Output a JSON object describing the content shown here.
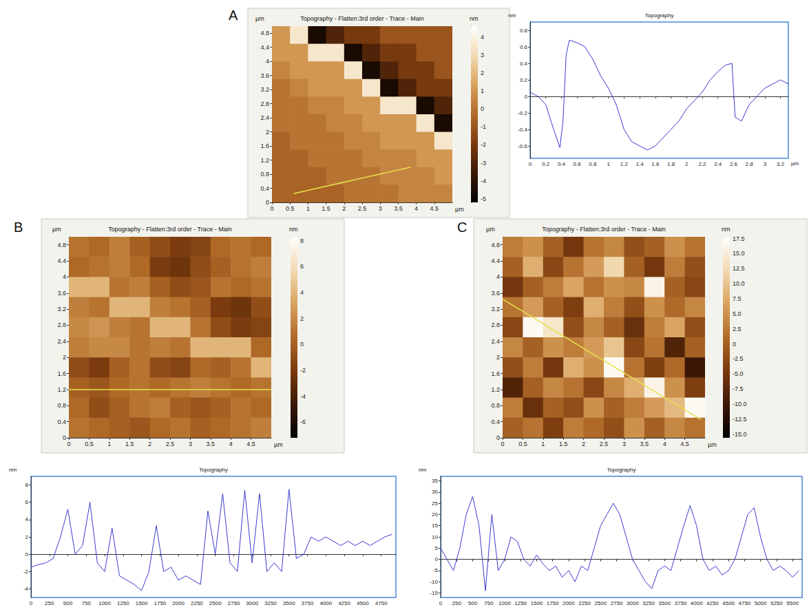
{
  "chart_data": [
    {
      "type": "heatmap",
      "panel": "A",
      "title": "Topography - Flatten:3rd order - Trace - Main",
      "x_unit": "µm",
      "y_unit": "µm",
      "grid": false,
      "xlim": [
        0,
        5
      ],
      "ylim": [
        0,
        5
      ],
      "xticks": [
        0,
        0.5,
        1,
        1.5,
        2,
        2.5,
        3,
        3.5,
        4,
        4.5
      ],
      "yticks": [
        0,
        0.4,
        0.8,
        1.2,
        1.6,
        2,
        2.4,
        2.8,
        3.2,
        3.6,
        4,
        4.4,
        4.8
      ],
      "z": [
        [
          1,
          3.5,
          -4.5,
          -3,
          -2,
          -2,
          -1,
          -1,
          -1,
          -1
        ],
        [
          1,
          1,
          3.5,
          3.5,
          -4.5,
          -3,
          -2,
          -2,
          -1,
          -1
        ],
        [
          0.5,
          1,
          1,
          1,
          3.5,
          -4.5,
          -3,
          -2,
          -2,
          -1
        ],
        [
          0,
          0.5,
          1,
          1,
          1,
          3.5,
          -4.5,
          -3,
          -2,
          -2
        ],
        [
          0,
          0,
          0.5,
          0.5,
          1,
          1,
          3.5,
          3.5,
          -4.5,
          -3
        ],
        [
          0,
          0,
          0,
          0.5,
          0.5,
          1,
          1,
          1,
          3.5,
          -4.5
        ],
        [
          -0.5,
          0,
          0,
          0,
          0.5,
          0.5,
          1,
          1,
          1,
          3.5
        ],
        [
          -0.5,
          -0.5,
          0,
          0,
          0,
          0.5,
          0.5,
          0.5,
          1,
          1
        ],
        [
          -0.5,
          -0.5,
          -0.5,
          0,
          0,
          0,
          0.5,
          0.5,
          0.5,
          1
        ],
        [
          -0.5,
          -0.5,
          -0.5,
          -0.5,
          0,
          0,
          0,
          0.5,
          0.5,
          0.5
        ]
      ],
      "colorbar": {
        "range": [
          -5.2,
          4.6
        ],
        "ticks": [
          -5,
          -4,
          -3,
          -2,
          -1,
          0,
          1,
          2,
          3,
          4
        ],
        "unit": "nm"
      },
      "profile_line": {
        "x": [
          0.6,
          3.85
        ],
        "y": [
          0.25,
          1.0
        ],
        "color": "#e6e04a"
      }
    },
    {
      "type": "line",
      "title": "Topography",
      "y_unit": "nm",
      "x_unit": "µm",
      "grid": false,
      "color": "#3a3ad0",
      "xlim": [
        0,
        3.3
      ],
      "ylim": [
        -0.75,
        0.9
      ],
      "xticks": [
        0,
        0.2,
        0.4,
        0.6,
        0.8,
        1,
        1.2,
        1.4,
        1.6,
        1.8,
        2,
        2.2,
        2.4,
        2.6,
        2.8,
        3,
        3.2
      ],
      "yticks": [
        -0.6,
        -0.4,
        -0.2,
        0,
        0.2,
        0.4,
        0.6,
        0.8
      ],
      "x": [
        0,
        0.1,
        0.2,
        0.3,
        0.38,
        0.42,
        0.46,
        0.5,
        0.6,
        0.7,
        0.8,
        0.9,
        1.0,
        1.1,
        1.2,
        1.3,
        1.4,
        1.5,
        1.6,
        1.7,
        1.8,
        1.9,
        2.0,
        2.1,
        2.2,
        2.3,
        2.4,
        2.5,
        2.58,
        2.62,
        2.7,
        2.8,
        2.9,
        3.0,
        3.1,
        3.2,
        3.3
      ],
      "values": [
        0.05,
        0.0,
        -0.1,
        -0.4,
        -0.62,
        -0.3,
        0.5,
        0.68,
        0.65,
        0.6,
        0.45,
        0.25,
        0.1,
        -0.1,
        -0.4,
        -0.55,
        -0.6,
        -0.65,
        -0.6,
        -0.5,
        -0.4,
        -0.3,
        -0.15,
        -0.05,
        0.05,
        0.2,
        0.3,
        0.38,
        0.4,
        -0.25,
        -0.3,
        -0.1,
        0.0,
        0.1,
        0.15,
        0.2,
        0.15
      ]
    },
    {
      "type": "heatmap",
      "panel": "B",
      "title": "Topography - Flatten:3rd order - Trace - Main",
      "x_unit": "µm",
      "y_unit": "µm",
      "grid": false,
      "xlim": [
        0,
        5
      ],
      "ylim": [
        0,
        5
      ],
      "xticks": [
        0,
        0.5,
        1,
        1.5,
        2,
        2.5,
        3,
        3.5,
        4,
        4.5
      ],
      "yticks": [
        0,
        0.4,
        0.8,
        1.2,
        1.6,
        2,
        2.4,
        2.8,
        3.2,
        3.6,
        4,
        4.4,
        4.8
      ],
      "z": [
        [
          1,
          0.5,
          1.5,
          0,
          -1,
          -2,
          -1.5,
          0.5,
          1,
          0.5
        ],
        [
          0.5,
          1,
          1.5,
          0.5,
          -2,
          -2.5,
          -1,
          0,
          1,
          1.5
        ],
        [
          4,
          4,
          1,
          1.5,
          0,
          -1,
          -0.5,
          1,
          0.5,
          1
        ],
        [
          1.5,
          1,
          4,
          4,
          1.5,
          1,
          0,
          -2,
          -2.5,
          -1
        ],
        [
          2,
          2.5,
          1.5,
          1,
          4,
          4,
          1,
          -1,
          -2,
          -1.5
        ],
        [
          1.5,
          2,
          2,
          1,
          1.5,
          1,
          4,
          4,
          4,
          0.5
        ],
        [
          -1,
          -2,
          0,
          1,
          -1,
          -1.5,
          0.5,
          0,
          1,
          4
        ],
        [
          0,
          -0.5,
          0.5,
          1,
          0.5,
          1,
          1.5,
          1,
          0.5,
          1
        ],
        [
          0.5,
          -1,
          0,
          1,
          1.5,
          0,
          -0.5,
          0,
          1,
          0.5
        ],
        [
          1,
          0.5,
          0,
          -0.5,
          0.5,
          1,
          0,
          0.5,
          1,
          1.5
        ]
      ],
      "colorbar": {
        "range": [
          -7.2,
          8.3
        ],
        "ticks": [
          -6,
          -4,
          -2,
          0,
          2,
          4,
          6,
          8
        ],
        "unit": "nm"
      },
      "profile_line": {
        "x": [
          0,
          5
        ],
        "y": [
          1.2,
          1.2
        ],
        "color": "#e6e04a"
      }
    },
    {
      "type": "line",
      "title": "Topography",
      "y_unit": "nm",
      "grid": false,
      "color": "#3a3ad0",
      "xlim": [
        0,
        4950
      ],
      "ylim": [
        -5,
        9
      ],
      "xticks": [
        0,
        250,
        500,
        750,
        1000,
        1250,
        1500,
        1750,
        2000,
        2250,
        2500,
        2750,
        3000,
        3250,
        3500,
        3750,
        4000,
        4250,
        4500,
        4750
      ],
      "yticks": [
        -4,
        -2,
        0,
        2,
        4,
        6,
        8
      ],
      "x": [
        0,
        100,
        200,
        300,
        400,
        500,
        600,
        700,
        800,
        900,
        1000,
        1100,
        1200,
        1300,
        1400,
        1500,
        1600,
        1700,
        1800,
        1900,
        2000,
        2100,
        2200,
        2300,
        2400,
        2500,
        2600,
        2700,
        2800,
        2900,
        3000,
        3100,
        3200,
        3300,
        3400,
        3500,
        3600,
        3700,
        3800,
        3900,
        4000,
        4100,
        4200,
        4300,
        4400,
        4500,
        4600,
        4700,
        4800,
        4900
      ],
      "values": [
        -1.5,
        -1.2,
        -1,
        -0.5,
        2,
        5.2,
        0,
        1,
        6,
        -1,
        -2,
        3,
        -2.5,
        -3,
        -3.5,
        -4.2,
        -2,
        3.3,
        -2,
        -1.5,
        -3,
        -2.5,
        -3,
        -3.5,
        5,
        0,
        7,
        -1,
        -2,
        7.4,
        -1,
        7,
        -2,
        -1,
        -2,
        7.5,
        -0.5,
        0,
        2,
        1.5,
        2,
        1.5,
        1,
        1.5,
        1,
        1.5,
        1,
        1.5,
        2,
        2.3
      ]
    },
    {
      "type": "heatmap",
      "panel": "C",
      "title": "Topography - Flatten:3rd order - Trace - Main",
      "x_unit": "µm",
      "y_unit": "µm",
      "grid": false,
      "xlim": [
        0,
        5
      ],
      "ylim": [
        0,
        5
      ],
      "xticks": [
        0,
        0.5,
        1,
        1.5,
        2,
        2.5,
        3,
        3.5,
        4,
        4.5
      ],
      "yticks": [
        0,
        0.4,
        0.8,
        1.2,
        1.6,
        2,
        2.4,
        2.8,
        3.2,
        3.6,
        4,
        4.4,
        4.8
      ],
      "z": [
        [
          3,
          5,
          0,
          -5,
          2,
          4,
          -2,
          0,
          5,
          2
        ],
        [
          0,
          8,
          -3,
          2,
          6,
          12,
          0,
          -5,
          3,
          -2
        ],
        [
          -5,
          0,
          3,
          7,
          2,
          5,
          4,
          16,
          0,
          -3
        ],
        [
          2,
          6,
          0,
          -4,
          8,
          3,
          -2,
          5,
          1,
          4
        ],
        [
          -3,
          17,
          14,
          -2,
          4,
          0,
          -6,
          3,
          7,
          -2
        ],
        [
          4,
          0,
          5,
          3,
          6,
          10,
          -3,
          2,
          -8,
          0
        ],
        [
          -2,
          3,
          -5,
          8,
          5,
          17,
          2,
          -4,
          1,
          -10
        ],
        [
          -8,
          0,
          4,
          2,
          -3,
          4,
          8,
          16,
          5,
          -4
        ],
        [
          3,
          -6,
          0,
          -2,
          5,
          0,
          3,
          6,
          9,
          17
        ],
        [
          0,
          2,
          -4,
          3,
          1,
          -2,
          5,
          0,
          4,
          2
        ]
      ],
      "colorbar": {
        "range": [
          -15.6,
          17.8
        ],
        "ticks": [
          {
            "value": -15,
            "label": "-15.0"
          },
          -12.5,
          {
            "value": -10,
            "label": "-10.0"
          },
          -7.5,
          {
            "value": -5,
            "label": "-5.0"
          },
          -2.5,
          0,
          2.5,
          {
            "value": 5,
            "label": "5.0"
          },
          7.5,
          {
            "value": 10,
            "label": "10.0"
          },
          12.5,
          {
            "value": 15,
            "label": "15.0"
          },
          17.5
        ],
        "unit": "nm"
      },
      "profile_line": {
        "x": [
          0,
          4.9
        ],
        "y": [
          3.45,
          0.45
        ],
        "color": "#e6e04a"
      }
    },
    {
      "type": "line",
      "title": "Topography",
      "y_unit": "nm",
      "grid": false,
      "color": "#3a3ad0",
      "xlim": [
        0,
        5650
      ],
      "ylim": [
        -17,
        37
      ],
      "xticks": [
        0,
        250,
        500,
        750,
        1000,
        1250,
        1500,
        1750,
        2000,
        2250,
        2500,
        2750,
        3000,
        3250,
        3500,
        3750,
        4000,
        4250,
        4500,
        4750,
        5000,
        5250,
        5500
      ],
      "yticks": [
        -15,
        -10,
        -5,
        0,
        5,
        10,
        15,
        20,
        25,
        30,
        35
      ],
      "x": [
        0,
        100,
        200,
        300,
        400,
        500,
        600,
        700,
        800,
        900,
        1000,
        1100,
        1200,
        1300,
        1400,
        1500,
        1600,
        1700,
        1800,
        1900,
        2000,
        2100,
        2200,
        2300,
        2400,
        2500,
        2600,
        2700,
        2800,
        2900,
        3000,
        3100,
        3200,
        3300,
        3400,
        3500,
        3600,
        3700,
        3800,
        3900,
        4000,
        4100,
        4200,
        4300,
        4400,
        4500,
        4600,
        4700,
        4800,
        4900,
        5000,
        5100,
        5200,
        5300,
        5400,
        5500,
        5600
      ],
      "values": [
        5,
        0,
        -5,
        5,
        20,
        28,
        15,
        -14,
        20,
        -5,
        0,
        10,
        8,
        0,
        -3,
        2,
        -2,
        -5,
        -3,
        -8,
        -5,
        -10,
        -3,
        -5,
        5,
        15,
        20,
        25,
        20,
        10,
        0,
        -5,
        -10,
        -13,
        -5,
        -3,
        -5,
        5,
        15,
        24,
        15,
        0,
        -5,
        -3,
        -7,
        -5,
        0,
        10,
        20,
        23,
        10,
        0,
        -5,
        -3,
        -5,
        -8,
        -5
      ]
    }
  ]
}
